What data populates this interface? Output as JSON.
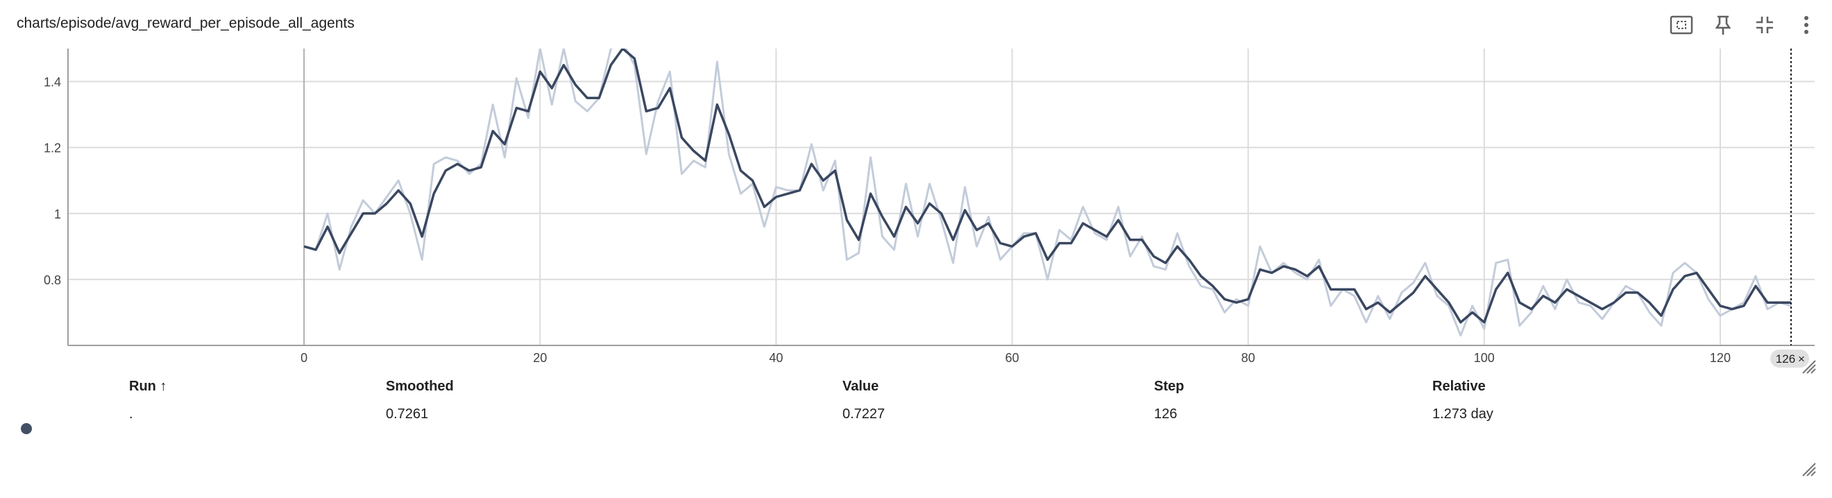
{
  "card": {
    "title": "charts/episode/avg_reward_per_episode_all_agents",
    "toolbar": [
      {
        "name": "fit-domain-icon"
      },
      {
        "name": "pin-icon"
      },
      {
        "name": "collapse-icon"
      },
      {
        "name": "more-vert-icon"
      }
    ]
  },
  "colors": {
    "smoothed": "#3a4760",
    "raw": "#c3ccda",
    "grid": "#dcdcdc",
    "dot": "#425066"
  },
  "chart_data": {
    "type": "line",
    "xlim": [
      -20,
      128
    ],
    "ylim": [
      0.6,
      1.5
    ],
    "x_ticks": [
      0,
      20,
      40,
      60,
      80,
      100,
      120
    ],
    "x_tick_labels": [
      "0",
      "20",
      "40",
      "60",
      "80",
      "100",
      "120"
    ],
    "y_ticks": [
      0.8,
      1.0,
      1.2,
      1.4
    ],
    "y_tick_labels": [
      "0.8",
      "1",
      "1.2",
      "1.4"
    ],
    "grid": true,
    "hover_step_label": "126",
    "series": [
      {
        "role": "raw",
        "x": [
          0,
          1,
          2,
          3,
          4,
          5,
          6,
          7,
          8,
          9,
          10,
          11,
          12,
          13,
          14,
          15,
          16,
          17,
          18,
          19,
          20,
          21,
          22,
          23,
          24,
          25,
          26,
          27,
          28,
          29,
          30,
          31,
          32,
          33,
          34,
          35,
          36,
          37,
          38,
          39,
          40,
          41,
          42,
          43,
          44,
          45,
          46,
          47,
          48,
          49,
          50,
          51,
          52,
          53,
          54,
          55,
          56,
          57,
          58,
          59,
          60,
          61,
          62,
          63,
          64,
          65,
          66,
          67,
          68,
          69,
          70,
          71,
          72,
          73,
          74,
          75,
          76,
          77,
          78,
          79,
          80,
          81,
          82,
          83,
          84,
          85,
          86,
          87,
          88,
          89,
          90,
          91,
          92,
          93,
          94,
          95,
          96,
          97,
          98,
          99,
          100,
          101,
          102,
          103,
          104,
          105,
          106,
          107,
          108,
          109,
          110,
          111,
          112,
          113,
          114,
          115,
          116,
          117,
          118,
          119,
          120,
          121,
          122,
          123,
          124,
          125,
          126
        ],
        "values": [
          0.9,
          0.89,
          1.0,
          0.83,
          0.96,
          1.04,
          1.0,
          1.05,
          1.1,
          1.0,
          0.86,
          1.15,
          1.17,
          1.16,
          1.12,
          1.15,
          1.33,
          1.17,
          1.41,
          1.29,
          1.5,
          1.33,
          1.5,
          1.34,
          1.31,
          1.35,
          1.5,
          1.52,
          1.45,
          1.18,
          1.34,
          1.43,
          1.12,
          1.16,
          1.14,
          1.46,
          1.18,
          1.06,
          1.09,
          0.96,
          1.08,
          1.07,
          1.07,
          1.21,
          1.07,
          1.16,
          0.86,
          0.88,
          1.17,
          0.93,
          0.89,
          1.09,
          0.93,
          1.09,
          0.98,
          0.85,
          1.08,
          0.9,
          0.99,
          0.86,
          0.9,
          0.94,
          0.94,
          0.8,
          0.95,
          0.92,
          1.02,
          0.94,
          0.92,
          1.02,
          0.87,
          0.93,
          0.84,
          0.83,
          0.94,
          0.84,
          0.78,
          0.77,
          0.7,
          0.74,
          0.72,
          0.9,
          0.82,
          0.85,
          0.82,
          0.8,
          0.86,
          0.72,
          0.77,
          0.75,
          0.67,
          0.75,
          0.68,
          0.76,
          0.79,
          0.85,
          0.75,
          0.72,
          0.63,
          0.72,
          0.65,
          0.85,
          0.86,
          0.66,
          0.7,
          0.78,
          0.71,
          0.8,
          0.73,
          0.72,
          0.68,
          0.73,
          0.78,
          0.76,
          0.7,
          0.66,
          0.82,
          0.85,
          0.82,
          0.74,
          0.69,
          0.71,
          0.73,
          0.81,
          0.71,
          0.73,
          0.72
        ]
      },
      {
        "role": "smoothed",
        "x": [
          0,
          1,
          2,
          3,
          4,
          5,
          6,
          7,
          8,
          9,
          10,
          11,
          12,
          13,
          14,
          15,
          16,
          17,
          18,
          19,
          20,
          21,
          22,
          23,
          24,
          25,
          26,
          27,
          28,
          29,
          30,
          31,
          32,
          33,
          34,
          35,
          36,
          37,
          38,
          39,
          40,
          41,
          42,
          43,
          44,
          45,
          46,
          47,
          48,
          49,
          50,
          51,
          52,
          53,
          54,
          55,
          56,
          57,
          58,
          59,
          60,
          61,
          62,
          63,
          64,
          65,
          66,
          67,
          68,
          69,
          70,
          71,
          72,
          73,
          74,
          75,
          76,
          77,
          78,
          79,
          80,
          81,
          82,
          83,
          84,
          85,
          86,
          87,
          88,
          89,
          90,
          91,
          92,
          93,
          94,
          95,
          96,
          97,
          98,
          99,
          100,
          101,
          102,
          103,
          104,
          105,
          106,
          107,
          108,
          109,
          110,
          111,
          112,
          113,
          114,
          115,
          116,
          117,
          118,
          119,
          120,
          121,
          122,
          123,
          124,
          125,
          126
        ],
        "values": [
          0.9,
          0.89,
          0.96,
          0.88,
          0.94,
          1.0,
          1.0,
          1.03,
          1.07,
          1.03,
          0.93,
          1.06,
          1.13,
          1.15,
          1.13,
          1.14,
          1.25,
          1.21,
          1.32,
          1.31,
          1.43,
          1.38,
          1.45,
          1.39,
          1.35,
          1.35,
          1.45,
          1.5,
          1.47,
          1.31,
          1.32,
          1.38,
          1.23,
          1.19,
          1.16,
          1.33,
          1.24,
          1.13,
          1.1,
          1.02,
          1.05,
          1.06,
          1.07,
          1.15,
          1.1,
          1.13,
          0.98,
          0.92,
          1.06,
          0.99,
          0.93,
          1.02,
          0.97,
          1.03,
          1.0,
          0.92,
          1.01,
          0.95,
          0.97,
          0.91,
          0.9,
          0.93,
          0.94,
          0.86,
          0.91,
          0.91,
          0.97,
          0.95,
          0.93,
          0.98,
          0.92,
          0.92,
          0.87,
          0.85,
          0.9,
          0.86,
          0.81,
          0.78,
          0.74,
          0.73,
          0.74,
          0.83,
          0.82,
          0.84,
          0.83,
          0.81,
          0.84,
          0.77,
          0.77,
          0.77,
          0.71,
          0.73,
          0.7,
          0.73,
          0.76,
          0.81,
          0.77,
          0.73,
          0.67,
          0.7,
          0.67,
          0.77,
          0.82,
          0.73,
          0.71,
          0.75,
          0.73,
          0.77,
          0.75,
          0.73,
          0.71,
          0.73,
          0.76,
          0.76,
          0.73,
          0.69,
          0.77,
          0.81,
          0.82,
          0.77,
          0.72,
          0.71,
          0.72,
          0.78,
          0.73,
          0.73,
          0.73
        ]
      }
    ]
  },
  "table": {
    "headers": {
      "run": "Run ↑",
      "smoothed": "Smoothed",
      "value": "Value",
      "step": "Step",
      "relative": "Relative"
    },
    "rows": [
      {
        "run": ".",
        "smoothed": "0.7261",
        "value": "0.7227",
        "step": "126",
        "relative": "1.273 day"
      }
    ]
  }
}
